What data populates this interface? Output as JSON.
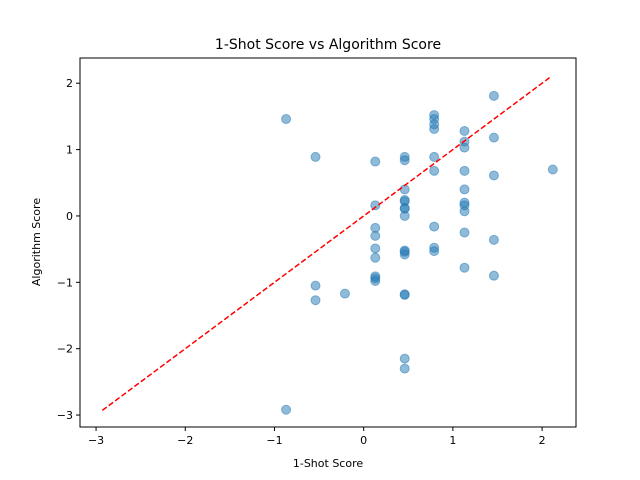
{
  "chart_data": {
    "type": "scatter",
    "title": "1-Shot Score vs Algorithm Score",
    "xlabel": "1-Shot Score",
    "ylabel": "Algorithm Score",
    "xlim": [
      -3.18,
      2.38
    ],
    "ylim": [
      -3.18,
      2.38
    ],
    "xticks": [
      -3,
      -2,
      -1,
      0,
      1,
      2
    ],
    "yticks": [
      -3,
      -2,
      -1,
      0,
      1,
      2
    ],
    "grid": false,
    "point_color": "#1f77b4",
    "point_alpha": 0.5,
    "reference_line": {
      "style": "dashed",
      "color": "#ff0000",
      "from": [
        -2.93,
        -2.93
      ],
      "to": [
        2.1,
        2.1
      ]
    },
    "points": [
      [
        -0.87,
        1.46
      ],
      [
        -0.87,
        -2.92
      ],
      [
        -0.54,
        0.89
      ],
      [
        -0.54,
        -1.05
      ],
      [
        -0.54,
        -1.27
      ],
      [
        -0.21,
        -1.17
      ],
      [
        0.13,
        0.82
      ],
      [
        0.13,
        0.16
      ],
      [
        0.13,
        -0.18
      ],
      [
        0.13,
        -0.3
      ],
      [
        0.13,
        -0.49
      ],
      [
        0.13,
        -0.63
      ],
      [
        0.13,
        -0.91
      ],
      [
        0.13,
        -0.94
      ],
      [
        0.13,
        -0.98
      ],
      [
        0.46,
        0.89
      ],
      [
        0.46,
        0.84
      ],
      [
        0.46,
        0.4
      ],
      [
        0.46,
        0.24
      ],
      [
        0.46,
        0.22
      ],
      [
        0.46,
        0.12
      ],
      [
        0.46,
        0.11
      ],
      [
        0.46,
        0.0
      ],
      [
        0.46,
        -0.52
      ],
      [
        0.46,
        -0.54
      ],
      [
        0.46,
        -0.58
      ],
      [
        0.46,
        -1.18
      ],
      [
        0.46,
        -1.19
      ],
      [
        0.46,
        -2.15
      ],
      [
        0.46,
        -2.3
      ],
      [
        0.79,
        1.52
      ],
      [
        0.79,
        1.46
      ],
      [
        0.79,
        1.38
      ],
      [
        0.79,
        1.31
      ],
      [
        0.79,
        0.89
      ],
      [
        0.79,
        0.68
      ],
      [
        0.79,
        -0.16
      ],
      [
        0.79,
        -0.48
      ],
      [
        0.79,
        -0.53
      ],
      [
        1.13,
        1.28
      ],
      [
        1.13,
        1.12
      ],
      [
        1.13,
        1.03
      ],
      [
        1.13,
        0.68
      ],
      [
        1.13,
        0.4
      ],
      [
        1.13,
        0.2
      ],
      [
        1.13,
        0.16
      ],
      [
        1.13,
        0.07
      ],
      [
        1.13,
        -0.25
      ],
      [
        1.13,
        -0.78
      ],
      [
        1.46,
        1.81
      ],
      [
        1.46,
        1.18
      ],
      [
        1.46,
        0.61
      ],
      [
        1.46,
        -0.36
      ],
      [
        1.46,
        -0.9
      ],
      [
        2.12,
        0.7
      ]
    ]
  }
}
